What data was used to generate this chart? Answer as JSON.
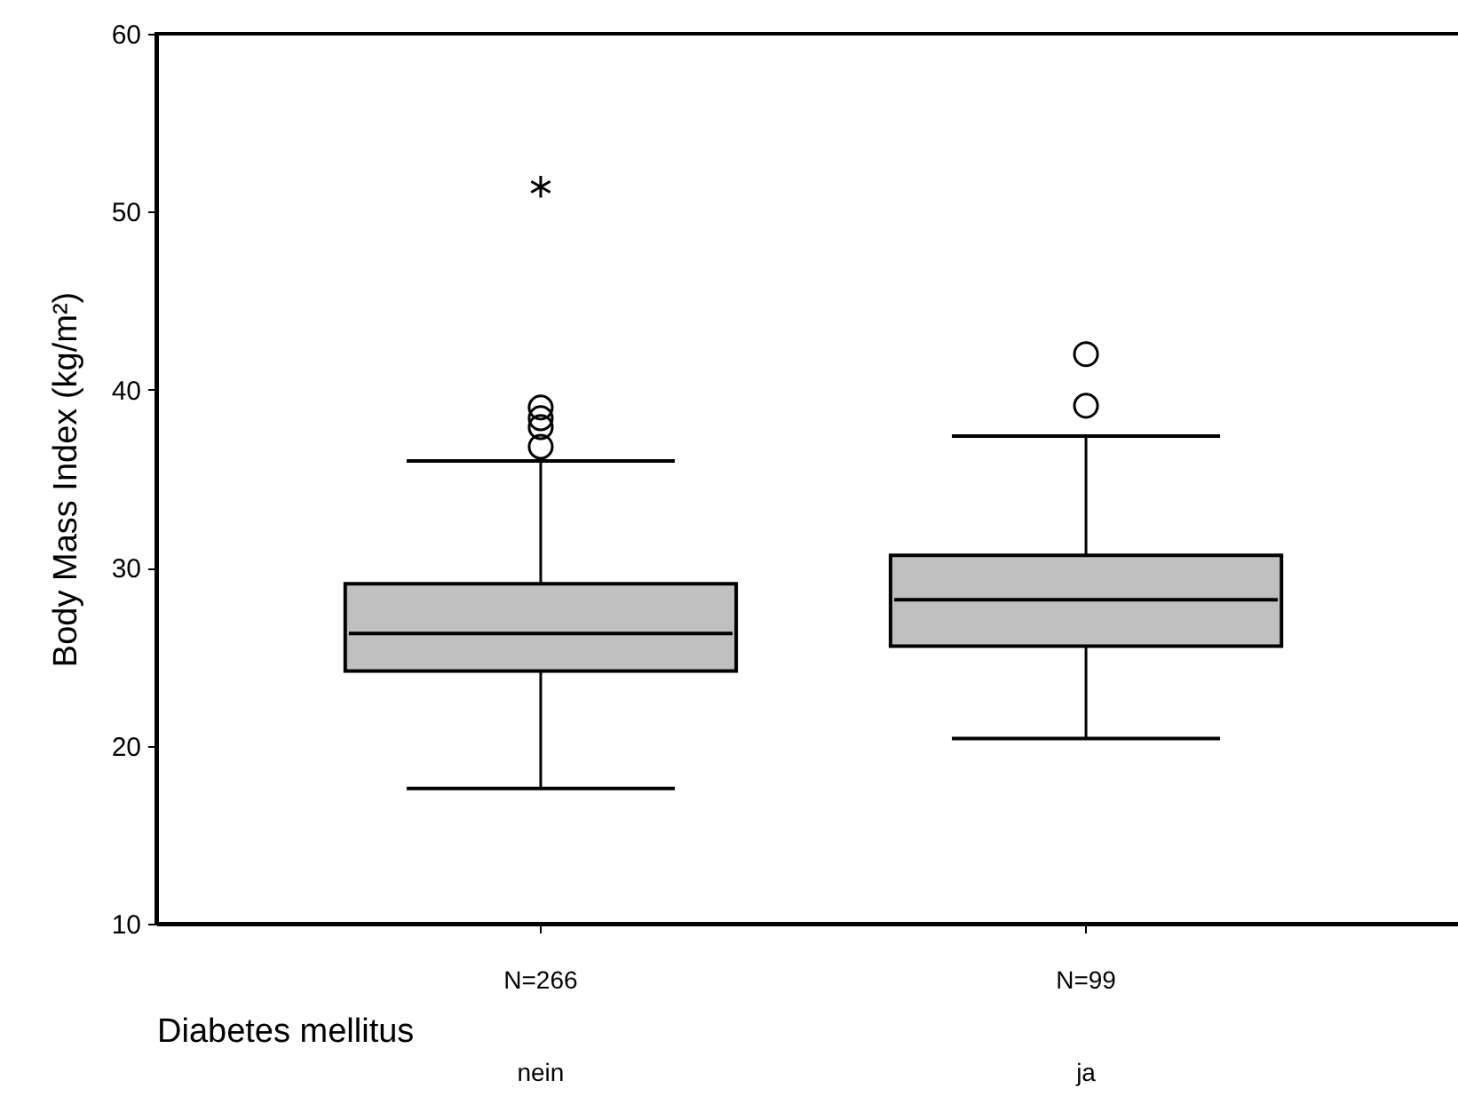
{
  "chart_data": {
    "type": "box",
    "ylabel": "Body Mass Index (kg/m²)",
    "xlabel": "Diabetes mellitus",
    "categories": [
      "N=266\nnein",
      "N=99\nja"
    ],
    "color": "#c0c0c0",
    "boxes": [
      {
        "low": 17.6,
        "q1": 24.2,
        "median": 26.3,
        "q3": 29.1,
        "high": 36.0,
        "outliers": [
          39.0,
          38.4,
          37.9,
          36.8
        ]
      },
      {
        "low": 20.4,
        "q1": 25.6,
        "median": 28.2,
        "q3": 30.7,
        "high": 37.4,
        "outliers": [
          42.0,
          39.1
        ]
      }
    ],
    "series": [
      {
        "type": "scatter",
        "marker": "cross",
        "color": "#000000",
        "x": [
          "N=266\nnein"
        ],
        "values": [
          51.4
        ]
      }
    ],
    "ylim": [
      10,
      60
    ],
    "yticks": [
      10,
      20,
      30,
      40,
      50,
      60
    ],
    "marker": "circle"
  }
}
